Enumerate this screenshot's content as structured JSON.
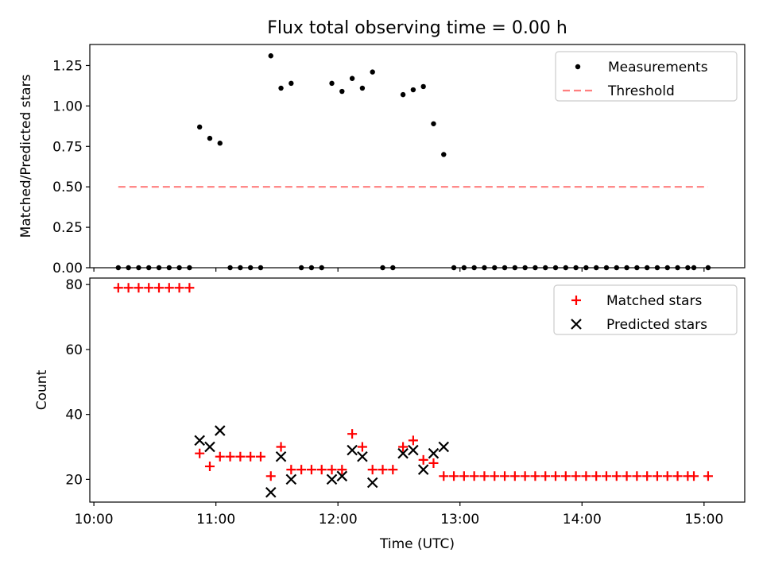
{
  "figure": {
    "title": "Flux total observing time = 0.00 h"
  },
  "chart_data": [
    {
      "type": "scatter",
      "name": "ratio-panel",
      "ylabel": "Matched/Predicted stars",
      "xlabel": "",
      "xlim": [
        "09:58",
        "15:20"
      ],
      "ylim": [
        0,
        1.38
      ],
      "yticks": [
        0.0,
        0.25,
        0.5,
        0.75,
        1.0,
        1.25
      ],
      "ytick_labels": [
        "0.00",
        "0.25",
        "0.50",
        "0.75",
        "1.00",
        "1.25"
      ],
      "xticks": [
        "10:00",
        "11:00",
        "12:00",
        "13:00",
        "14:00",
        "15:00"
      ],
      "show_xtick_labels": false,
      "legend": {
        "placement": "top-right",
        "entries": [
          "Measurements",
          "Threshold"
        ]
      },
      "series": [
        {
          "name": "Measurements",
          "marker": "dot",
          "color": "#000000",
          "points": [
            [
              "10:12",
              0
            ],
            [
              "10:17",
              0
            ],
            [
              "10:22",
              0
            ],
            [
              "10:27",
              0
            ],
            [
              "10:32",
              0
            ],
            [
              "10:37",
              0
            ],
            [
              "10:42",
              0
            ],
            [
              "10:47",
              0
            ],
            [
              "10:52",
              0.87
            ],
            [
              "10:57",
              0.8
            ],
            [
              "11:02",
              0.77
            ],
            [
              "11:07",
              0
            ],
            [
              "11:12",
              0
            ],
            [
              "11:17",
              0
            ],
            [
              "11:22",
              0
            ],
            [
              "11:27",
              1.31
            ],
            [
              "11:32",
              1.11
            ],
            [
              "11:37",
              1.14
            ],
            [
              "11:42",
              0
            ],
            [
              "11:47",
              0
            ],
            [
              "11:52",
              0
            ],
            [
              "11:57",
              1.14
            ],
            [
              "12:02",
              1.09
            ],
            [
              "12:07",
              1.17
            ],
            [
              "12:12",
              1.11
            ],
            [
              "12:17",
              1.21
            ],
            [
              "12:22",
              0
            ],
            [
              "12:27",
              0
            ],
            [
              "12:32",
              1.07
            ],
            [
              "12:37",
              1.1
            ],
            [
              "12:42",
              1.12
            ],
            [
              "12:47",
              0.89
            ],
            [
              "12:52",
              0.7
            ],
            [
              "12:57",
              0
            ],
            [
              "13:02",
              0
            ],
            [
              "13:07",
              0
            ],
            [
              "13:12",
              0
            ],
            [
              "13:17",
              0
            ],
            [
              "13:22",
              0
            ],
            [
              "13:27",
              0
            ],
            [
              "13:32",
              0
            ],
            [
              "13:37",
              0
            ],
            [
              "13:42",
              0
            ],
            [
              "13:47",
              0
            ],
            [
              "13:52",
              0
            ],
            [
              "13:57",
              0
            ],
            [
              "14:02",
              0
            ],
            [
              "14:07",
              0
            ],
            [
              "14:12",
              0
            ],
            [
              "14:17",
              0
            ],
            [
              "14:22",
              0
            ],
            [
              "14:27",
              0
            ],
            [
              "14:32",
              0
            ],
            [
              "14:37",
              0
            ],
            [
              "14:42",
              0
            ],
            [
              "14:47",
              0
            ],
            [
              "14:52",
              0
            ],
            [
              "14:55",
              0
            ],
            [
              "15:02",
              0
            ]
          ]
        },
        {
          "name": "Threshold",
          "style": "dashed-line",
          "color": "#ff7f7f",
          "points": [
            [
              "10:12",
              0.5
            ],
            [
              "15:02",
              0.5
            ]
          ]
        }
      ]
    },
    {
      "type": "scatter",
      "name": "count-panel",
      "ylabel": "Count",
      "xlabel": "Time (UTC)",
      "xlim": [
        "09:58",
        "15:20"
      ],
      "ylim": [
        13,
        82
      ],
      "yticks": [
        20,
        40,
        60,
        80
      ],
      "ytick_labels": [
        "20",
        "40",
        "60",
        "80"
      ],
      "xticks": [
        "10:00",
        "11:00",
        "12:00",
        "13:00",
        "14:00",
        "15:00"
      ],
      "show_xtick_labels": true,
      "legend": {
        "placement": "top-right",
        "entries": [
          "Matched stars",
          "Predicted stars"
        ]
      },
      "series": [
        {
          "name": "Matched stars",
          "marker": "plus",
          "color": "#ff0000",
          "points": [
            [
              "10:12",
              79
            ],
            [
              "10:17",
              79
            ],
            [
              "10:22",
              79
            ],
            [
              "10:27",
              79
            ],
            [
              "10:32",
              79
            ],
            [
              "10:37",
              79
            ],
            [
              "10:42",
              79
            ],
            [
              "10:47",
              79
            ],
            [
              "10:52",
              28
            ],
            [
              "10:57",
              24
            ],
            [
              "11:02",
              27
            ],
            [
              "11:07",
              27
            ],
            [
              "11:12",
              27
            ],
            [
              "11:17",
              27
            ],
            [
              "11:22",
              27
            ],
            [
              "11:27",
              21
            ],
            [
              "11:32",
              30
            ],
            [
              "11:37",
              23
            ],
            [
              "11:42",
              23
            ],
            [
              "11:47",
              23
            ],
            [
              "11:52",
              23
            ],
            [
              "11:57",
              23
            ],
            [
              "12:02",
              23
            ],
            [
              "12:07",
              34
            ],
            [
              "12:12",
              30
            ],
            [
              "12:17",
              23
            ],
            [
              "12:22",
              23
            ],
            [
              "12:27",
              23
            ],
            [
              "12:32",
              30
            ],
            [
              "12:37",
              32
            ],
            [
              "12:42",
              26
            ],
            [
              "12:47",
              25
            ],
            [
              "12:52",
              21
            ],
            [
              "12:57",
              21
            ],
            [
              "13:02",
              21
            ],
            [
              "13:07",
              21
            ],
            [
              "13:12",
              21
            ],
            [
              "13:17",
              21
            ],
            [
              "13:22",
              21
            ],
            [
              "13:27",
              21
            ],
            [
              "13:32",
              21
            ],
            [
              "13:37",
              21
            ],
            [
              "13:42",
              21
            ],
            [
              "13:47",
              21
            ],
            [
              "13:52",
              21
            ],
            [
              "13:57",
              21
            ],
            [
              "14:02",
              21
            ],
            [
              "14:07",
              21
            ],
            [
              "14:12",
              21
            ],
            [
              "14:17",
              21
            ],
            [
              "14:22",
              21
            ],
            [
              "14:27",
              21
            ],
            [
              "14:32",
              21
            ],
            [
              "14:37",
              21
            ],
            [
              "14:42",
              21
            ],
            [
              "14:47",
              21
            ],
            [
              "14:52",
              21
            ],
            [
              "14:55",
              21
            ],
            [
              "15:02",
              21
            ]
          ]
        },
        {
          "name": "Predicted stars",
          "marker": "x",
          "color": "#000000",
          "points": [
            [
              "10:52",
              32
            ],
            [
              "10:57",
              30
            ],
            [
              "11:02",
              35
            ],
            [
              "11:27",
              16
            ],
            [
              "11:32",
              27
            ],
            [
              "11:37",
              20
            ],
            [
              "11:57",
              20
            ],
            [
              "12:02",
              21
            ],
            [
              "12:07",
              29
            ],
            [
              "12:12",
              27
            ],
            [
              "12:17",
              19
            ],
            [
              "12:32",
              28
            ],
            [
              "12:37",
              29
            ],
            [
              "12:42",
              23
            ],
            [
              "12:47",
              28
            ],
            [
              "12:52",
              30
            ]
          ]
        }
      ]
    }
  ]
}
